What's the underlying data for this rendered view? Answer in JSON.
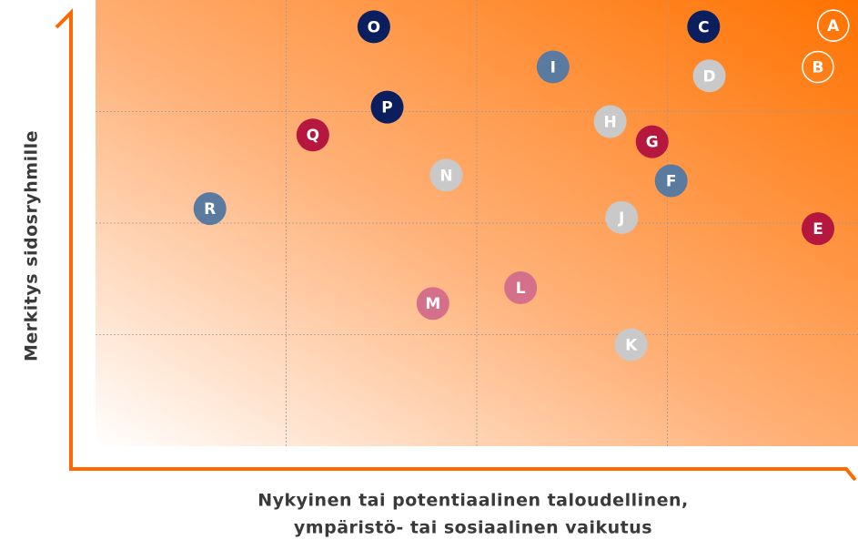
{
  "chart_data": {
    "type": "scatter",
    "x_label": [
      "Nykyinen tai potentiaalinen taloudellinen,",
      "ympäristö- tai sosiaalinen vaikutus"
    ],
    "y_label": "Merkitys sidosryhmille",
    "xlim": [
      0,
      4
    ],
    "ylim": [
      0,
      4
    ],
    "xticks": [
      1,
      2,
      3
    ],
    "yticks": [
      1,
      2,
      3
    ],
    "grid": true,
    "points": [
      {
        "label": "A",
        "x": 3.87,
        "y": 3.77,
        "color": "none"
      },
      {
        "label": "B",
        "x": 3.79,
        "y": 3.4,
        "color": "none"
      },
      {
        "label": "C",
        "x": 3.19,
        "y": 3.76,
        "color": "#0b1f5e"
      },
      {
        "label": "D",
        "x": 3.22,
        "y": 3.32,
        "color": "#c9c9c9"
      },
      {
        "label": "E",
        "x": 3.79,
        "y": 1.95,
        "color": "#b5173f"
      },
      {
        "label": "F",
        "x": 3.02,
        "y": 2.38,
        "color": "#5a7aa0"
      },
      {
        "label": "G",
        "x": 2.92,
        "y": 2.73,
        "color": "#b5173f"
      },
      {
        "label": "H",
        "x": 2.7,
        "y": 2.91,
        "color": "#c9c9c9"
      },
      {
        "label": "I",
        "x": 2.4,
        "y": 3.4,
        "color": "#5a7aa0"
      },
      {
        "label": "J",
        "x": 2.76,
        "y": 2.05,
        "color": "#c9c9c9"
      },
      {
        "label": "K",
        "x": 2.81,
        "y": 0.91,
        "color": "#c9c9c9"
      },
      {
        "label": "L",
        "x": 2.23,
        "y": 1.42,
        "color": "#d4708a"
      },
      {
        "label": "M",
        "x": 1.77,
        "y": 1.28,
        "color": "#d4708a"
      },
      {
        "label": "N",
        "x": 1.84,
        "y": 2.43,
        "color": "#c9c9c9"
      },
      {
        "label": "O",
        "x": 1.46,
        "y": 3.76,
        "color": "#0b1f5e"
      },
      {
        "label": "P",
        "x": 1.53,
        "y": 3.04,
        "color": "#0b1f5e"
      },
      {
        "label": "Q",
        "x": 1.14,
        "y": 2.79,
        "color": "#b5173f"
      },
      {
        "label": "R",
        "x": 0.6,
        "y": 2.13,
        "color": "#5a7aa0"
      }
    ]
  }
}
